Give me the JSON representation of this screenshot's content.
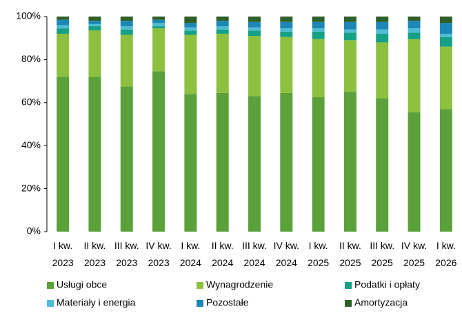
{
  "chart_data": {
    "type": "stacked_bar",
    "categories": [
      [
        "I kw.",
        "2023"
      ],
      [
        "II kw.",
        "2023"
      ],
      [
        "III kw.",
        "2023"
      ],
      [
        "IV kw.",
        "2023"
      ],
      [
        "I kw.",
        "2024"
      ],
      [
        "II kw.",
        "2024"
      ],
      [
        "III kw.",
        "2024"
      ],
      [
        "IV kw.",
        "2024"
      ],
      [
        "I kw.",
        "2025"
      ],
      [
        "II kw.",
        "2025"
      ],
      [
        "III kw.",
        "2025"
      ],
      [
        "IV kw.",
        "2025"
      ],
      [
        "I kw.",
        "2026"
      ]
    ],
    "series": [
      {
        "name": "Usługi obce",
        "color": "#5ba13a",
        "values": [
          72,
          72,
          67.5,
          74.5,
          64,
          64.5,
          63,
          64.5,
          62.5,
          65,
          62,
          55.5,
          57
        ]
      },
      {
        "name": "Wynagrodzenie",
        "color": "#8dc03f",
        "values": [
          20,
          21.5,
          24,
          20,
          27.5,
          27.5,
          28,
          26,
          27,
          24,
          26,
          34,
          29
        ]
      },
      {
        "name": "Podatki i opłaty",
        "color": "#16a085",
        "values": [
          2.5,
          2,
          2.5,
          1,
          2,
          2,
          2.5,
          2.5,
          3.5,
          3.5,
          4,
          3,
          4.5
        ]
      },
      {
        "name": "Materiały i energia",
        "color": "#4fbcd3",
        "values": [
          1.5,
          1,
          1.5,
          1.5,
          1.5,
          1.5,
          1.5,
          1.5,
          1.5,
          1.5,
          2,
          2,
          1.5
        ]
      },
      {
        "name": "Pozostałe",
        "color": "#1c86b6",
        "values": [
          2.5,
          1.5,
          2.5,
          1.5,
          2,
          2.5,
          2.5,
          3,
          3,
          3.5,
          3.5,
          3.5,
          5
        ]
      },
      {
        "name": "Amortyzacja",
        "color": "#2e5f27",
        "values": [
          1.5,
          2,
          2,
          1.5,
          3,
          2,
          2.5,
          2.5,
          2.5,
          2.5,
          2.5,
          2,
          3
        ]
      }
    ],
    "ylim": [
      0,
      100
    ],
    "yticks": [
      {
        "value": 0,
        "label": "0%"
      },
      {
        "value": 20,
        "label": "20%"
      },
      {
        "value": 40,
        "label": "40%"
      },
      {
        "value": 60,
        "label": "60%"
      },
      {
        "value": 80,
        "label": "80%"
      },
      {
        "value": 100,
        "label": "100%"
      }
    ],
    "legend": "bottom"
  }
}
